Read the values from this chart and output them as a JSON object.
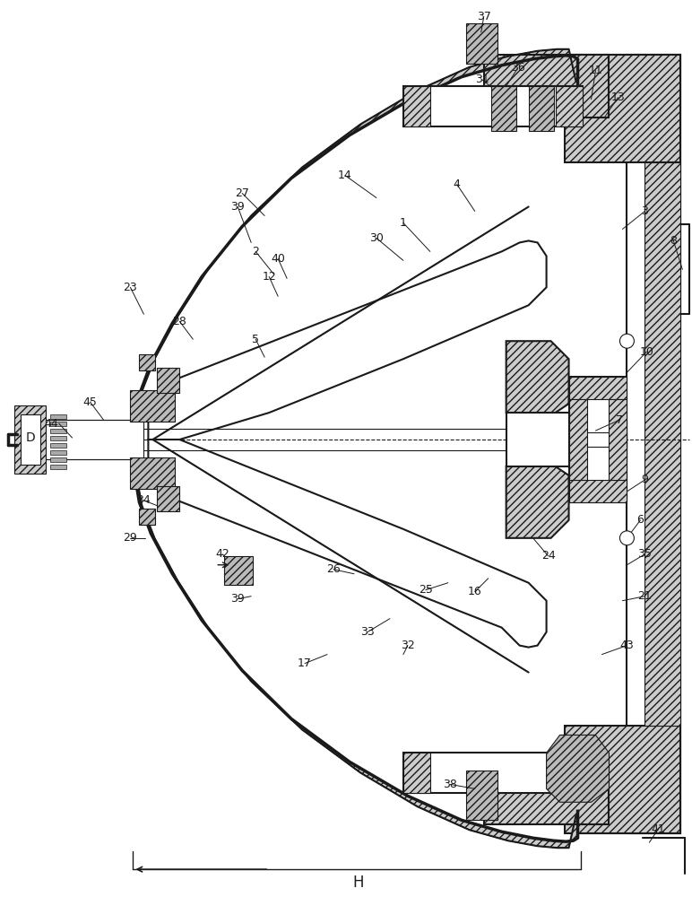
{
  "bg_color": "#ffffff",
  "line_color": "#1a1a1a",
  "fig_width": 7.72,
  "fig_height": 10.0
}
